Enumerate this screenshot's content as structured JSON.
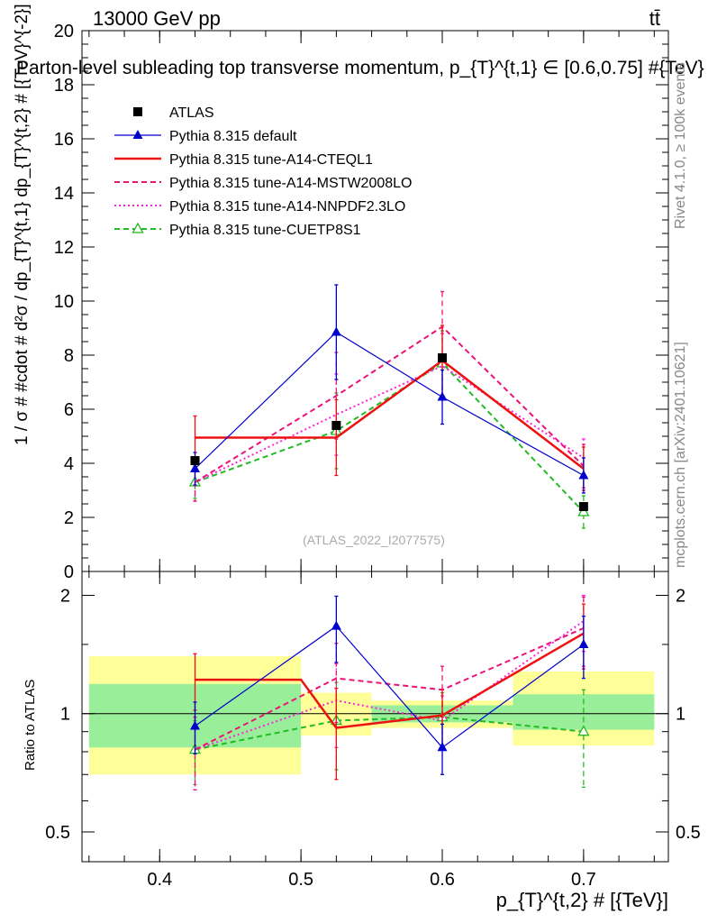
{
  "header": {
    "energy_label": "13000 GeV pp",
    "process_label": "tt̄",
    "title": "Parton-level subleading top transverse momentum, p_{T}^{t,1} ∈ [0.6,0.75] #{TeV}"
  },
  "side_labels": {
    "rivet": "Rivet 4.1.0, ≥ 100k events",
    "mcplots": "mcplots.cern.ch [arXiv:2401.10621]"
  },
  "watermark": "(ATLAS_2022_I2077575)",
  "axes": {
    "top_ylabel": "1 / σ # #cdot # d²σ / dp_{T}^{t,1} dp_{T}^{t,2} # [{TeV}^{-2}]",
    "bottom_ylabel": "Ratio to ATLAS",
    "xlabel": "p_{T}^{t,2} # [{TeV}]"
  },
  "colors": {
    "data": "#000000",
    "default": "#0000cc",
    "cteql1": "#ee1111",
    "mstw": "#ee1177",
    "nnpdf": "#ff22dd",
    "cuetp": "#22bb22",
    "band_inner": "#99ee99",
    "band_outer": "#ffff99",
    "side_text": "#888888"
  },
  "chart_data": {
    "type": "line",
    "x": [
      0.425,
      0.525,
      0.6,
      0.7
    ],
    "bins": [
      [
        0.35,
        0.5
      ],
      [
        0.5,
        0.55
      ],
      [
        0.55,
        0.65
      ],
      [
        0.65,
        0.75
      ]
    ],
    "xlim": [
      0.345,
      0.76
    ],
    "xticks": [
      "0.4",
      "0.5",
      "0.6",
      "0.7"
    ],
    "ylim_main": [
      0,
      20
    ],
    "yticks_main": [
      "0",
      "2",
      "4",
      "6",
      "8",
      "10",
      "12",
      "14",
      "16",
      "18",
      "20"
    ],
    "ylim_ratio": [
      0.42,
      2.3
    ],
    "yticks_ratio": [
      "0.5",
      "1",
      "2"
    ],
    "legend": [
      {
        "label": "ATLAS",
        "key": "data"
      },
      {
        "label": "Pythia 8.315 default",
        "key": "default"
      },
      {
        "label": "Pythia 8.315 tune-A14-CTEQL1",
        "key": "cteql1"
      },
      {
        "label": "Pythia 8.315 tune-A14-MSTW2008LO",
        "key": "mstw"
      },
      {
        "label": "Pythia 8.315 tune-A14-NNPDF2.3LO",
        "key": "nnpdf"
      },
      {
        "label": "Pythia 8.315 tune-CUETP8S1",
        "key": "cuetp"
      }
    ],
    "data": {
      "name": "ATLAS",
      "values": [
        4.1,
        5.4,
        7.9,
        2.4
      ]
    },
    "series": [
      {
        "key": "default",
        "name": "Pythia 8.315 default",
        "style": "solid-triangle",
        "values": [
          3.8,
          8.85,
          6.45,
          3.55
        ],
        "err": [
          0.6,
          1.75,
          1.0,
          0.65
        ]
      },
      {
        "key": "cteql1",
        "name": "Pythia 8.315 tune-A14-CTEQL1",
        "style": "solid-step",
        "values": [
          4.95,
          4.95,
          7.8,
          3.8
        ],
        "err": [
          0.8,
          1.4,
          1.3,
          0.8
        ]
      },
      {
        "key": "mstw",
        "name": "Pythia 8.315 tune-A14-MSTW2008LO",
        "style": "dashed",
        "values": [
          3.3,
          6.5,
          9.05,
          3.9
        ],
        "err": [
          0.7,
          1.6,
          1.3,
          0.8
        ]
      },
      {
        "key": "nnpdf",
        "name": "Pythia 8.315 tune-A14-NNPDF2.3LO",
        "style": "dotted",
        "values": [
          3.3,
          5.8,
          7.6,
          4.2
        ],
        "err": [
          0.7,
          1.5,
          1.2,
          0.7
        ]
      },
      {
        "key": "cuetp",
        "name": "Pythia 8.315 tune-CUETP8S1",
        "style": "dashed-open-triangle",
        "values": [
          3.3,
          5.2,
          7.7,
          2.2
        ],
        "err": [
          0.6,
          1.4,
          1.2,
          0.6
        ]
      }
    ],
    "ratio": {
      "band_inner": [
        [
          0.82,
          1.19
        ],
        [
          1.0,
          1.0
        ],
        [
          0.95,
          1.05
        ],
        [
          0.91,
          1.12
        ]
      ],
      "band_outer": [
        [
          0.7,
          1.4
        ],
        [
          0.88,
          1.13
        ],
        [
          0.92,
          1.08
        ],
        [
          0.83,
          1.28
        ]
      ],
      "series": [
        {
          "key": "default",
          "values": [
            0.93,
            1.67,
            0.82,
            1.5
          ],
          "err": [
            0.14,
            0.32,
            0.12,
            0.27
          ]
        },
        {
          "key": "cteql1",
          "values": [
            1.22,
            0.92,
            0.99,
            1.6
          ],
          "err": [
            0.2,
            0.24,
            0.16,
            0.3
          ]
        },
        {
          "key": "mstw",
          "values": [
            0.81,
            1.23,
            1.15,
            1.65
          ],
          "err": [
            0.17,
            0.28,
            0.17,
            0.33
          ]
        },
        {
          "key": "nnpdf",
          "values": [
            0.81,
            1.08,
            0.96,
            1.72
          ],
          "err": [
            0.17,
            0.26,
            0.15,
            0.28
          ]
        },
        {
          "key": "cuetp",
          "values": [
            0.81,
            0.96,
            0.98,
            0.9
          ],
          "err": [
            0.15,
            0.24,
            0.15,
            0.25
          ]
        }
      ]
    }
  }
}
